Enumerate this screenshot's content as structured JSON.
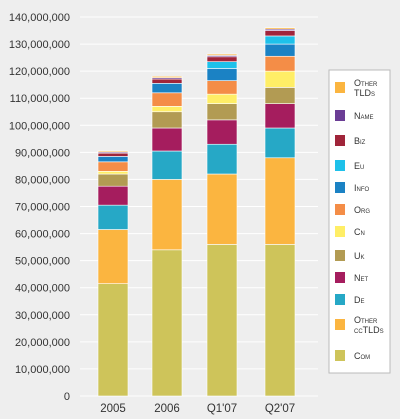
{
  "chart_data": {
    "type": "bar",
    "stacked": true,
    "title": "",
    "xlabel": "",
    "ylabel": "",
    "ylim": [
      0,
      140000000
    ],
    "y_tick_step": 10000000,
    "y_tick_labels": [
      "0",
      "10,000,000",
      "20,000,000",
      "30,000,000",
      "40,000,000",
      "50,000,000",
      "60,000,000",
      "70,000,000",
      "80,000,000",
      "90,000,000",
      "100,000,000",
      "110,000,000",
      "120,000,000",
      "130,000,000",
      "140,000,000"
    ],
    "grid": true,
    "legend_position": "right",
    "categories": [
      "2005",
      "2006",
      "Q1'07",
      "Q2'07"
    ],
    "series": [
      {
        "name": "Com",
        "color": "#cec45a",
        "values": [
          41500000,
          54000000,
          56000000,
          56000000
        ]
      },
      {
        "name": "Other ccTLDs",
        "color": "#fbb540",
        "values": [
          20000000,
          26000000,
          26000000,
          32000000
        ]
      },
      {
        "name": "De",
        "color": "#26a8c6",
        "values": [
          9000000,
          10500000,
          11000000,
          11000000
        ]
      },
      {
        "name": "Net",
        "color": "#a51d5e",
        "values": [
          7000000,
          8500000,
          9000000,
          9000000
        ]
      },
      {
        "name": "Uk",
        "color": "#b29b53",
        "values": [
          4500000,
          6000000,
          6000000,
          6000000
        ]
      },
      {
        "name": "Cn",
        "color": "#ffee66",
        "values": [
          1000000,
          2000000,
          3500000,
          6000000
        ]
      },
      {
        "name": "Org",
        "color": "#f48d47",
        "values": [
          3500000,
          5000000,
          5000000,
          5500000
        ]
      },
      {
        "name": "Info",
        "color": "#1b82c4",
        "values": [
          2000000,
          3500000,
          4500000,
          4500000
        ]
      },
      {
        "name": "Eu",
        "color": "#1ec1ea",
        "values": [
          0,
          0,
          2500000,
          3000000
        ]
      },
      {
        "name": "Biz",
        "color": "#a0253a",
        "values": [
          1200000,
          1600000,
          1800000,
          2000000
        ]
      },
      {
        "name": "Name",
        "color": "#6b3d95",
        "values": [
          400000,
          500000,
          500000,
          500000
        ]
      },
      {
        "name": "Other TLDs",
        "color": "#fbb540",
        "values": [
          400000,
          500000,
          500000,
          500000
        ]
      }
    ],
    "legend_order": [
      "Other TLDs",
      "Name",
      "Biz",
      "Eu",
      "Info",
      "Org",
      "Cn",
      "Uk",
      "Net",
      "De",
      "Other ccTLDs",
      "Com"
    ],
    "colors": {
      "grid": "#ffffff",
      "plot_background": "#eeeeee",
      "legend_border": "#bbbbbb",
      "legend_background": "#ffffff"
    }
  }
}
